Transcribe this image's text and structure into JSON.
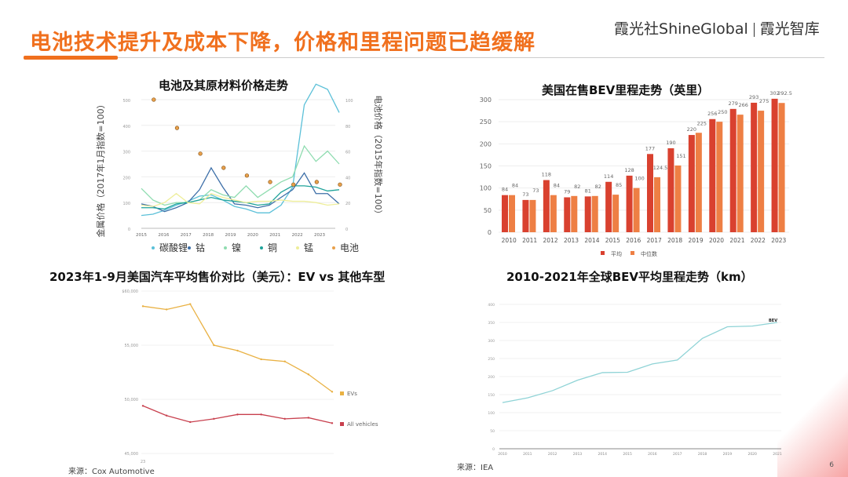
{
  "header": {
    "title": "电池技术提升及成本下降，价格和里程问题已趋缓解",
    "logo_cn": "霞光社",
    "logo_en": "ShineGlobal",
    "logo_right": "霞光智库"
  },
  "page_number": "6",
  "sources": {
    "bottom_left": "来源：Cox Automotive",
    "bottom_right": "来源：IEA"
  },
  "colors": {
    "accent": "#f0701e",
    "avg": "#d9412f",
    "median": "#ee7f44",
    "evs": "#e9b143",
    "all": "#c8404e",
    "range": "#8fd3d6"
  },
  "chart_data": [
    {
      "type": "line",
      "title": "电池及其原材料价格走势",
      "ylabel": "金属价格（2017年1月指数=100）",
      "y2label": "电池价格（2015年指数=100）",
      "ylim": [
        0,
        500
      ],
      "yticks": [
        "0",
        "100",
        "200",
        "300",
        "400",
        "500"
      ],
      "y2lim": [
        0,
        100
      ],
      "y2ticks": [
        "0",
        "20",
        "40",
        "60",
        "80",
        "100"
      ],
      "x": [
        2015,
        2015.5,
        2016,
        2016.5,
        2017,
        2017.5,
        2018,
        2018.5,
        2019,
        2019.5,
        2020,
        2020.5,
        2021,
        2021.5,
        2022,
        2022.5,
        2023,
        2023.5
      ],
      "xticks": [
        "2015",
        "2016",
        "2017",
        "2018",
        "2019",
        "2020",
        "2021",
        "2022",
        "2023"
      ],
      "series": [
        {
          "name": "碳酸锂",
          "color": "#5bc0d8",
          "values": [
            50,
            55,
            70,
            90,
            105,
            125,
            130,
            110,
            85,
            75,
            60,
            60,
            90,
            160,
            480,
            560,
            540,
            450
          ]
        },
        {
          "name": "钴",
          "color": "#3d6fa8",
          "values": [
            95,
            85,
            65,
            80,
            100,
            150,
            235,
            160,
            95,
            90,
            80,
            90,
            120,
            150,
            215,
            135,
            135,
            95
          ]
        },
        {
          "name": "镍",
          "color": "#8fdcb0",
          "values": [
            155,
            110,
            90,
            100,
            100,
            110,
            150,
            130,
            120,
            165,
            120,
            150,
            180,
            200,
            320,
            260,
            300,
            250
          ]
        },
        {
          "name": "铜",
          "color": "#1fa39a",
          "values": [
            80,
            80,
            75,
            95,
            100,
            110,
            120,
            110,
            105,
            100,
            90,
            95,
            140,
            165,
            165,
            160,
            145,
            150
          ]
        },
        {
          "name": "锰",
          "color": "#eeee9a",
          "values": [
            90,
            85,
            100,
            135,
            100,
            95,
            135,
            120,
            110,
            100,
            105,
            105,
            110,
            105,
            105,
            100,
            90,
            95
          ]
        }
      ],
      "dots": {
        "name": "电池",
        "color": "#b87a2a",
        "values": [
          100,
          78,
          58,
          47,
          41,
          36,
          34,
          36,
          34
        ]
      },
      "legend": [
        "碳酸锂",
        "钴",
        "镍",
        "铜",
        "锰",
        "电池"
      ]
    },
    {
      "type": "bar",
      "title": "美国在售BEV里程走势（英里）",
      "categories": [
        "2010",
        "2011",
        "2012",
        "2013",
        "2014",
        "2015",
        "2016",
        "2017",
        "2018",
        "2019",
        "2020",
        "2021",
        "2022",
        "2023"
      ],
      "ylim": [
        0,
        300
      ],
      "yticks": [
        "0",
        "50",
        "100",
        "150",
        "200",
        "250",
        "300"
      ],
      "series": [
        {
          "name": "平均",
          "values": [
            84,
            73,
            118,
            79,
            81,
            114,
            128,
            177,
            190,
            220,
            256,
            279,
            293,
            302
          ]
        },
        {
          "name": "中位数",
          "values": [
            84,
            73,
            84,
            82,
            82,
            85,
            100,
            124.5,
            151,
            225,
            250,
            266,
            275,
            292.5
          ]
        }
      ]
    },
    {
      "type": "line",
      "title": "2023年1-9月美国汽车平均售价对比（美元）：EV vs 其他车型",
      "xlabel_first": "23",
      "ylim": [
        45000,
        60000
      ],
      "yticks": [
        "45,000",
        "50,000",
        "55,000",
        "$60,000"
      ],
      "series": [
        {
          "name": "EVs",
          "values": [
            58600,
            58300,
            58800,
            55000,
            54500,
            53700,
            53500,
            52300,
            50700
          ]
        },
        {
          "name": "All vehicles",
          "values": [
            49400,
            48500,
            47900,
            48200,
            48600,
            48600,
            48200,
            48300,
            47800
          ]
        }
      ]
    },
    {
      "type": "line",
      "title": "2010-2021年全球BEV平均里程走势（km）",
      "xticks": [
        "2010",
        "2011",
        "2012",
        "2013",
        "2014",
        "2015",
        "2016",
        "2017",
        "2018",
        "2019",
        "2020",
        "2021"
      ],
      "ylim": [
        0,
        400
      ],
      "yticks": [
        "0",
        "50",
        "100",
        "150",
        "200",
        "250",
        "300",
        "350",
        "400"
      ],
      "series": [
        {
          "name": "BEV",
          "values": [
            128,
            141,
            161,
            190,
            211,
            212,
            235,
            246,
            306,
            338,
            340,
            350
          ]
        }
      ]
    }
  ]
}
